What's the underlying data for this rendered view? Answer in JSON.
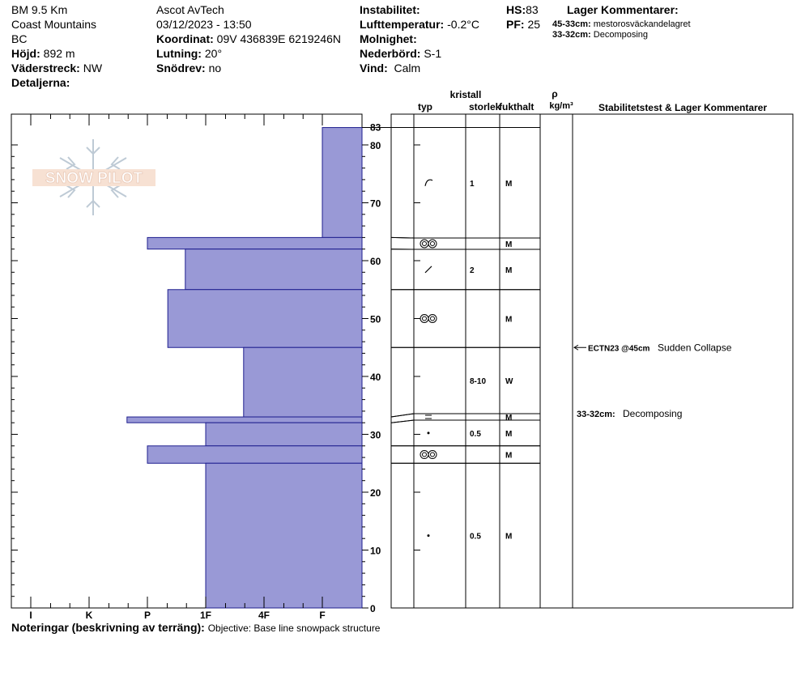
{
  "header": {
    "location": "BM 9.5 Km",
    "range": "Coast Mountains",
    "region": "BC",
    "elevation_label": "Höjd:",
    "elevation_value": "892 m",
    "aspect_label": "Väderstreck:",
    "aspect_value": "NW",
    "details_label": "Detaljerna:",
    "observer": "Ascot AvTech",
    "datetime": "03/12/2023 - 13:50",
    "coord_label": "Koordinat:",
    "coord_value": "09V 436839E 6219246N",
    "slope_label": "Lutning:",
    "slope_value": "20°",
    "drift_label": "Snödrev:",
    "drift_value": "no",
    "instability_label": "Instabilitet:",
    "air_temp_label": "Lufttemperatur:",
    "air_temp_value": "-0.2°C",
    "sky_label": "Molnighet:",
    "precip_label": "Nederbörd:",
    "precip_value": "S-1",
    "wind_label": "Vind:",
    "wind_value": "Calm",
    "hs_label": "HS:",
    "hs_value": "83",
    "pf_label": "PF:",
    "pf_value": "25",
    "layer_comments_title": "Lager Kommentarer:",
    "comment1_depth": "45-33cm:",
    "comment1_text": "mestorosväckandelagret",
    "comment2_depth": "33-32cm:",
    "comment2_text": "Decomposing"
  },
  "columns": {
    "crystal": "kristall",
    "type": "typ",
    "size": "storlek",
    "moisture": "fukthalt",
    "rho": "ρ",
    "density_unit": "kg/m³",
    "stability_title": "Stabilitetstest & Lager Kommentarer"
  },
  "logo_text": "SNOW PILOT",
  "notes": {
    "label": "Noteringar (beskrivning av terräng):",
    "text": "Objective: Base line snowpack structure"
  },
  "stability_tests": [
    {
      "depth": 45,
      "code": "ECTN23 @45cm",
      "result": "Sudden Collapse"
    }
  ],
  "layer_comment_right": {
    "depth_label": "33-32cm:",
    "text": "Decomposing",
    "top": 33
  },
  "chart_data": {
    "type": "bar",
    "title": "",
    "ylabel": "",
    "ylim": [
      0,
      85
    ],
    "yticks": [
      0,
      10,
      20,
      30,
      40,
      50,
      60,
      70,
      80,
      83
    ],
    "hardness_scale": [
      "I",
      "K",
      "P",
      "1F",
      "4F",
      "F"
    ],
    "hardness_index": {
      "F": 1,
      "4F": 2,
      "1F": 3,
      "P": 4,
      "K": 5,
      "I": 6
    },
    "bar_color": "#9999d6",
    "layers": [
      {
        "top": 83,
        "bottom": 64,
        "hardness": "F",
        "grain": "precip",
        "size": "1",
        "moisture": "M"
      },
      {
        "top": 64,
        "bottom": 62,
        "hardness": "P+",
        "grain": "melt",
        "size": "",
        "moisture": "M"
      },
      {
        "top": 62,
        "bottom": 55,
        "hardness": "1F+",
        "grain": "decomp",
        "size": "2",
        "moisture": "M"
      },
      {
        "top": 55,
        "bottom": 45,
        "hardness": "P-",
        "grain": "melt",
        "size": "",
        "moisture": "M"
      },
      {
        "top": 45,
        "bottom": 33,
        "hardness": "1F-",
        "grain": "",
        "size": "8-10",
        "moisture": "W"
      },
      {
        "top": 33,
        "bottom": 32,
        "hardness": "K-",
        "grain": "crust",
        "size": "",
        "moisture": "M"
      },
      {
        "top": 32,
        "bottom": 28,
        "hardness": "P-1F",
        "grain": "round",
        "size": "0.5",
        "moisture": "M"
      },
      {
        "top": 28,
        "bottom": 25,
        "hardness": "P",
        "grain": "melt",
        "size": "",
        "moisture": "M"
      },
      {
        "top": 25,
        "bottom": 0,
        "hardness": "P-1F",
        "grain": "round",
        "size": "0.5",
        "moisture": "M"
      }
    ],
    "layer_hardness_index": [
      1.0,
      4.0,
      3.35,
      3.65,
      2.35,
      4.35,
      3.0,
      4.0,
      3.0
    ]
  }
}
